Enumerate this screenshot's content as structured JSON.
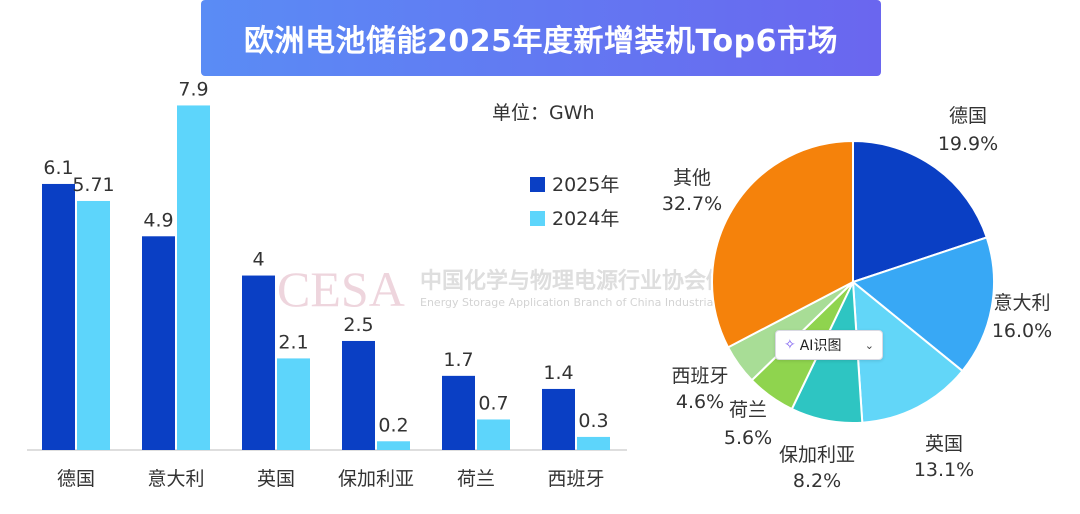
{
  "banner": {
    "title": "欧洲电池储能2025年度新增装机Top6市场"
  },
  "unit_label": "单位：GWh",
  "watermark": {
    "logo": "CESA",
    "cn": "中国化学与物理电源行业协会储能应用分会",
    "en": "Energy Storage Application Branch of China Industrial Association of Power Sources"
  },
  "ai_button": {
    "label": "AI识图",
    "icon": "sparkle-icon",
    "chevron": "chevron-down-icon"
  },
  "colors": {
    "s2025": "#0a3fc4",
    "s2024": "#5dd5fb"
  },
  "chart_data": [
    {
      "type": "bar",
      "categories": [
        "德国",
        "意大利",
        "英国",
        "保加利亚",
        "荷兰",
        "西班牙"
      ],
      "series": [
        {
          "name": "2025年",
          "values": [
            6.1,
            4.9,
            4,
            2.5,
            1.7,
            1.4
          ],
          "labels": [
            "6.1",
            "4.9",
            "4",
            "2.5",
            "1.7",
            "1.4"
          ],
          "color": "#0a3fc4"
        },
        {
          "name": "2024年",
          "values": [
            5.71,
            7.9,
            2.1,
            0.2,
            0.7,
            0.3
          ],
          "labels": [
            "5.71",
            "7.9",
            "2.1",
            "0.2",
            "0.7",
            "0.3"
          ],
          "color": "#5dd5fb"
        }
      ],
      "ylim": [
        0,
        8.3
      ],
      "grid": false,
      "legend": "right"
    },
    {
      "type": "pie",
      "slices": [
        {
          "label": "德国",
          "value": 19.9,
          "pct": "19.9%",
          "color": "#0a3fc4"
        },
        {
          "label": "意大利",
          "value": 16.0,
          "pct": "16.0%",
          "color": "#38a8f5"
        },
        {
          "label": "英国",
          "value": 13.1,
          "pct": "13.1%",
          "color": "#62d6f8"
        },
        {
          "label": "保加利亚",
          "value": 8.2,
          "pct": "8.2%",
          "color": "#2ec5c2"
        },
        {
          "label": "荷兰",
          "value": 5.6,
          "pct": "5.6%",
          "color": "#8fd44e"
        },
        {
          "label": "西班牙",
          "value": 4.6,
          "pct": "4.6%",
          "color": "#a8dd96"
        },
        {
          "label": "其他",
          "value": 32.7,
          "pct": "32.7%",
          "color": "#f5820b"
        }
      ],
      "start": "top",
      "direction": "clockwise"
    }
  ]
}
